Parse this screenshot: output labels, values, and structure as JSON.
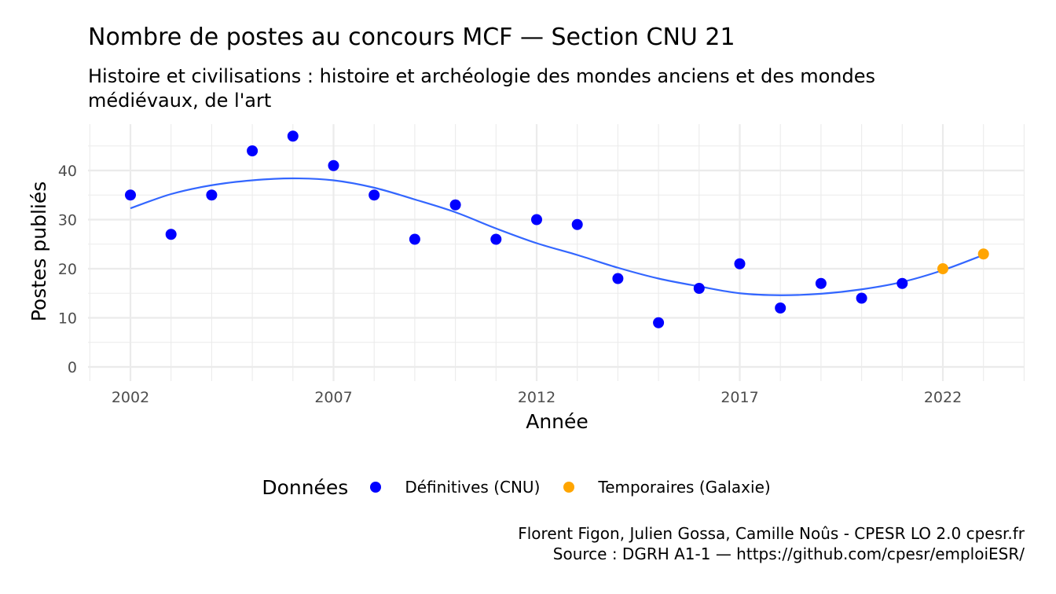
{
  "chart_data": {
    "type": "scatter",
    "title": "Nombre de postes au concours MCF  —  Section CNU 21",
    "subtitle": "Histoire et civilisations : histoire et archéologie des mondes anciens et des mondes médiévaux, de l'art",
    "xlabel": "Année",
    "ylabel": "Postes publiés",
    "xlim": [
      2001,
      2024
    ],
    "ylim": [
      0,
      48
    ],
    "x_ticks": [
      2002,
      2007,
      2012,
      2017,
      2022
    ],
    "y_ticks": [
      0,
      10,
      20,
      30,
      40
    ],
    "grid": true,
    "legend": {
      "title": "Données",
      "position": "bottom"
    },
    "series": [
      {
        "name": "Définitives (CNU)",
        "color": "#0000ff",
        "x": [
          2002,
          2003,
          2004,
          2005,
          2006,
          2007,
          2008,
          2009,
          2010,
          2011,
          2012,
          2013,
          2014,
          2015,
          2016,
          2017,
          2018,
          2019,
          2020,
          2021
        ],
        "y": [
          35,
          27,
          35,
          44,
          47,
          41,
          35,
          26,
          33,
          26,
          30,
          29,
          18,
          9,
          16,
          21,
          12,
          17,
          14,
          17
        ]
      },
      {
        "name": "Temporaires (Galaxie)",
        "color": "#ffa500",
        "x": [
          2022,
          2023
        ],
        "y": [
          20,
          23
        ]
      }
    ],
    "trend": {
      "color": "#3366ff",
      "x": [
        2002,
        2003,
        2004,
        2005,
        2006,
        2007,
        2008,
        2009,
        2010,
        2011,
        2012,
        2013,
        2014,
        2015,
        2016,
        2017,
        2018,
        2019,
        2020,
        2021,
        2022,
        2023
      ],
      "y": [
        32.3,
        35.2,
        37.0,
        38.0,
        38.4,
        38.0,
        36.5,
        34.1,
        31.5,
        28.2,
        25.2,
        22.8,
        20.2,
        18.0,
        16.4,
        15.0,
        14.6,
        14.9,
        15.8,
        17.3,
        19.7,
        22.8
      ]
    }
  },
  "caption": {
    "line1": "Florent Figon, Julien Gossa, Camille Noûs - CPESR LO 2.0 cpesr.fr",
    "line2": "Source : DGRH A1-1 — https://github.com/cpesr/emploiESR/"
  }
}
